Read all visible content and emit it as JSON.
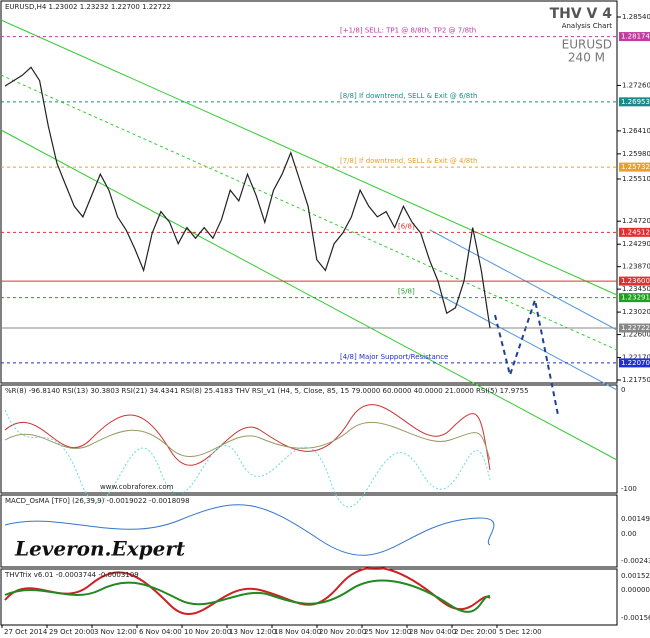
{
  "header": {
    "symbol_line": "EURUSD,H4  1.23002 1.23232 1.22700 1.22722",
    "brand": "THV V 4",
    "brand_sub": "Analysis Chart",
    "pair": "EURUSD",
    "timeframe": "240 M"
  },
  "price_chart": {
    "type": "line",
    "color": "#222222",
    "values": [
      1.2725,
      1.2735,
      1.2745,
      1.276,
      1.2735,
      1.265,
      1.258,
      1.254,
      1.25,
      1.248,
      1.252,
      1.256,
      1.253,
      1.248,
      1.2455,
      1.242,
      1.238,
      1.245,
      1.249,
      1.247,
      1.243,
      1.246,
      1.244,
      1.246,
      1.244,
      1.2475,
      1.253,
      1.251,
      1.256,
      1.252,
      1.247,
      1.253,
      1.256,
      1.26,
      1.255,
      1.25,
      1.24,
      1.238,
      1.243,
      1.245,
      1.248,
      1.253,
      1.25,
      1.248,
      1.249,
      1.246,
      1.25,
      1.247,
      1.245,
      1.24,
      1.236,
      1.23,
      1.231,
      1.236,
      1.246,
      1.238,
      1.2272
    ],
    "ylim": [
      1.2854,
      1.2175
    ],
    "yticks": [
      {
        "value": 1.2854,
        "label": "1.28540"
      },
      {
        "value": 1.2726,
        "label": "1.27260"
      },
      {
        "value": 1.2641,
        "label": "1.26410"
      },
      {
        "value": 1.2598,
        "label": "1.25980"
      },
      {
        "value": 1.2551,
        "label": "1.25510"
      },
      {
        "value": 1.2472,
        "label": "1.24720"
      },
      {
        "value": 1.2429,
        "label": "1.24290"
      },
      {
        "value": 1.2387,
        "label": "1.23870"
      },
      {
        "value": 1.2345,
        "label": "1.23450"
      },
      {
        "value": 1.2302,
        "label": "1.23020"
      },
      {
        "value": 1.226,
        "label": "1.22600"
      },
      {
        "value": 1.2217,
        "label": "1.22170"
      },
      {
        "value": 1.2175,
        "label": "1.21750"
      }
    ],
    "levels": [
      {
        "price": {
          "value": 1.28174,
          "label": "1.28174"
        },
        "text": "[+1/8] SELL: TP1 @ 8/8th, TP2 @ 7/8th",
        "color": "#c03ca0",
        "dash": true
      },
      {
        "price": {
          "value": 1.26953,
          "label": "1.26953"
        },
        "text": "[8/8] If downtrend, SELL & Exit @ 6/8th",
        "color": "#1a8a8a",
        "dash": true
      },
      {
        "price": {
          "value": 1.25732,
          "label": "1.25732"
        },
        "text": "[7/8] If downtrend, SELL & Exit @ 4/8th",
        "color": "#e8a030",
        "dash": true
      },
      {
        "price": {
          "value": 1.24512,
          "label": "1.24512"
        },
        "text": "[6/8]",
        "color": "#e03030",
        "dash": true
      },
      {
        "price": {
          "value": 1.236,
          "label": "1.23600"
        },
        "text": "",
        "color": "#e03030",
        "dash": false
      },
      {
        "price": {
          "value": 1.23291,
          "label": "1.23291"
        },
        "text": "[5/8]",
        "color": "#20a020",
        "dash": true
      },
      {
        "price": {
          "value": 1.22722,
          "label": "1.22722"
        },
        "text": "",
        "color": "#888888",
        "dash": false
      },
      {
        "price": {
          "value": 1.2207,
          "label": "1.22070"
        },
        "text": "[4/8] Major Support/Resistance",
        "color": "#2030d0",
        "dash": true
      }
    ]
  },
  "dates": [
    "27 Oct 2014",
    "29 Oct 20:00",
    "3 Nov 12:00",
    "6 Nov 04:00",
    "10 Nov 20:00",
    "13 Nov 12:00",
    "18 Nov 04:00",
    "20 Nov 20:00",
    "25 Nov 12:00",
    "28 Nov 04:00",
    "2 Dec 20:00",
    "5 Dec 12:00"
  ],
  "rsi_panel": {
    "label": "%R(8) -96.8140 RSI(13) 30.3803 RSI(21) 34.4341 RSI(8) 25.4183   THV RSI_v1 (H4, 5, Close, 85, 15 79.0000 60.0000 40.0000 21.0000   RSI(5) 17.9755",
    "watermark": "www.cobraforex.com",
    "top": "0",
    "bottom": "-100"
  },
  "macd_panel": {
    "label": "MACD_OsMA [TF0] (26,39,9) -0.0019022 -0.0018098",
    "logo": "Leveron.Expert",
    "top": "0.001492",
    "mid": "0.00",
    "bottom": "-0.002437"
  },
  "trix_panel": {
    "label": "THVTrix v6.01 -0.0003744 -0.0003109",
    "top": "0.001522",
    "mid": "0.000000",
    "bottom": "-0.001561"
  }
}
